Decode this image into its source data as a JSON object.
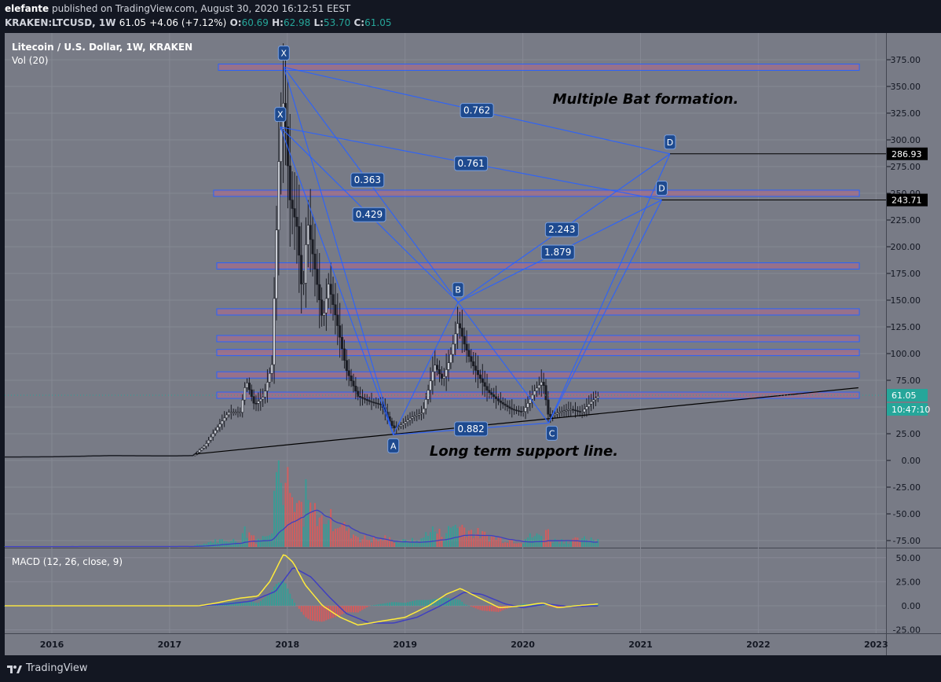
{
  "header": {
    "publisher": "elefante",
    "published_text": "published on TradingView.com, August 30, 2020 16:12:51 EEST",
    "symbol": "KRAKEN:LTCUSD, 1W",
    "last": "61.05",
    "change": "+4.06 (+7.12%)",
    "o_label": "O:",
    "o_value": "60.69",
    "h_label": "H:",
    "h_value": "62.98",
    "l_label": "L:",
    "l_value": "53.70",
    "c_label": "C:",
    "c_value": "61.05"
  },
  "legend": {
    "title": "Litecoin / U.S. Dollar, 1W, KRAKEN",
    "volume": "Vol (20)",
    "macd": "MACD (12, 26, close, 9)"
  },
  "annotations": {
    "bat_text": "Multiple Bat formation.",
    "support_text": "Long term support line.",
    "ratios": [
      "0.762",
      "0.761",
      "0.363",
      "0.429",
      "2.243",
      "1.879",
      "0.882"
    ],
    "points": [
      "X",
      "X",
      "A",
      "B",
      "C",
      "D",
      "D"
    ]
  },
  "price_labels": {
    "last": "61.05",
    "countdown": "10:47:10",
    "d1": "286.93",
    "d2": "243.71"
  },
  "footer": {
    "brand": "TradingView"
  },
  "colors": {
    "background": "#787b86",
    "up": "#26a69a",
    "down": "#ef5350",
    "pattern": "#2962ff",
    "zone_fill": "#b06a8f",
    "support_line": "#000000",
    "macd_line": "#ffeb3b",
    "signal_line": "#3f3fc0"
  },
  "chart_data": {
    "type": "candlestick",
    "title": "Litecoin / U.S. Dollar, 1W, KRAKEN",
    "x_ticks": [
      "2016",
      "2017",
      "2018",
      "2019",
      "2020",
      "2021",
      "2022",
      "2023"
    ],
    "y_ticks": [
      "375.00",
      "350.00",
      "325.00",
      "300.00",
      "275.00",
      "250.00",
      "225.00",
      "200.00",
      "175.00",
      "150.00",
      "125.00",
      "100.00",
      "75.00",
      "50.00",
      "25.00",
      "0.00",
      "-25.00",
      "-50.00",
      "-75.00"
    ],
    "ylim": [
      -80,
      390
    ],
    "macd_ticks": [
      "50.00",
      "25.00",
      "0.00",
      "-25.00"
    ],
    "macd_ylim": [
      -27,
      56
    ],
    "pattern_points": [
      {
        "label": "X",
        "date": 2017.97,
        "price": 368
      },
      {
        "label": "X",
        "date": 2017.94,
        "price": 312
      },
      {
        "label": "A",
        "date": 2018.9,
        "price": 24
      },
      {
        "label": "B",
        "date": 2019.45,
        "price": 148
      },
      {
        "label": "C",
        "date": 2020.22,
        "price": 35
      },
      {
        "label": "D",
        "date": 2021.25,
        "price": 286.93
      },
      {
        "label": "D",
        "date": 2021.18,
        "price": 243.71
      }
    ],
    "zones": [
      368,
      250,
      182,
      139,
      114,
      101,
      80,
      61
    ],
    "support_line": [
      {
        "date": 2017.22,
        "price": 6
      },
      {
        "date": 2022.85,
        "price": 68
      }
    ],
    "price_series": [
      [
        2015.6,
        3.2
      ],
      [
        2016.0,
        3.4
      ],
      [
        2016.5,
        4.5
      ],
      [
        2017.0,
        4.2
      ],
      [
        2017.2,
        4.5
      ],
      [
        2017.3,
        14
      ],
      [
        2017.4,
        30
      ],
      [
        2017.5,
        45
      ],
      [
        2017.6,
        45
      ],
      [
        2017.65,
        75
      ],
      [
        2017.72,
        52
      ],
      [
        2017.8,
        60
      ],
      [
        2017.87,
        90
      ],
      [
        2017.93,
        290
      ],
      [
        2017.97,
        340
      ],
      [
        2018.02,
        245
      ],
      [
        2018.08,
        220
      ],
      [
        2018.13,
        150
      ],
      [
        2018.17,
        225
      ],
      [
        2018.22,
        190
      ],
      [
        2018.3,
        130
      ],
      [
        2018.35,
        165
      ],
      [
        2018.42,
        130
      ],
      [
        2018.5,
        85
      ],
      [
        2018.6,
        60
      ],
      [
        2018.7,
        55
      ],
      [
        2018.8,
        52
      ],
      [
        2018.9,
        30
      ],
      [
        2018.95,
        32
      ],
      [
        2019.05,
        40
      ],
      [
        2019.15,
        45
      ],
      [
        2019.25,
        90
      ],
      [
        2019.32,
        75
      ],
      [
        2019.38,
        95
      ],
      [
        2019.45,
        130
      ],
      [
        2019.5,
        110
      ],
      [
        2019.55,
        95
      ],
      [
        2019.62,
        80
      ],
      [
        2019.7,
        65
      ],
      [
        2019.8,
        55
      ],
      [
        2019.9,
        48
      ],
      [
        2020.0,
        45
      ],
      [
        2020.1,
        65
      ],
      [
        2020.17,
        75
      ],
      [
        2020.22,
        40
      ],
      [
        2020.3,
        45
      ],
      [
        2020.4,
        48
      ],
      [
        2020.5,
        45
      ],
      [
        2020.58,
        55
      ],
      [
        2020.65,
        61.05
      ]
    ],
    "macd_series": [
      [
        2015.6,
        0
      ],
      [
        2017.25,
        0
      ],
      [
        2017.4,
        3
      ],
      [
        2017.6,
        8
      ],
      [
        2017.75,
        10
      ],
      [
        2017.85,
        25
      ],
      [
        2017.97,
        54
      ],
      [
        2018.05,
        45
      ],
      [
        2018.15,
        22
      ],
      [
        2018.3,
        0
      ],
      [
        2018.45,
        -12
      ],
      [
        2018.6,
        -20
      ],
      [
        2018.8,
        -16
      ],
      [
        2019.0,
        -12
      ],
      [
        2019.2,
        0
      ],
      [
        2019.35,
        12
      ],
      [
        2019.47,
        18
      ],
      [
        2019.6,
        10
      ],
      [
        2019.8,
        -2
      ],
      [
        2020.0,
        0
      ],
      [
        2020.17,
        3
      ],
      [
        2020.3,
        -2
      ],
      [
        2020.45,
        0
      ],
      [
        2020.65,
        2
      ]
    ],
    "signal_series": [
      [
        2015.6,
        0
      ],
      [
        2017.25,
        0
      ],
      [
        2017.5,
        2
      ],
      [
        2017.7,
        5
      ],
      [
        2017.9,
        15
      ],
      [
        2018.05,
        40
      ],
      [
        2018.2,
        30
      ],
      [
        2018.35,
        10
      ],
      [
        2018.5,
        -8
      ],
      [
        2018.7,
        -18
      ],
      [
        2018.9,
        -18
      ],
      [
        2019.1,
        -12
      ],
      [
        2019.3,
        0
      ],
      [
        2019.5,
        14
      ],
      [
        2019.65,
        12
      ],
      [
        2019.85,
        2
      ],
      [
        2020.0,
        -2
      ],
      [
        2020.2,
        2
      ],
      [
        2020.4,
        -1
      ],
      [
        2020.65,
        0
      ]
    ]
  }
}
